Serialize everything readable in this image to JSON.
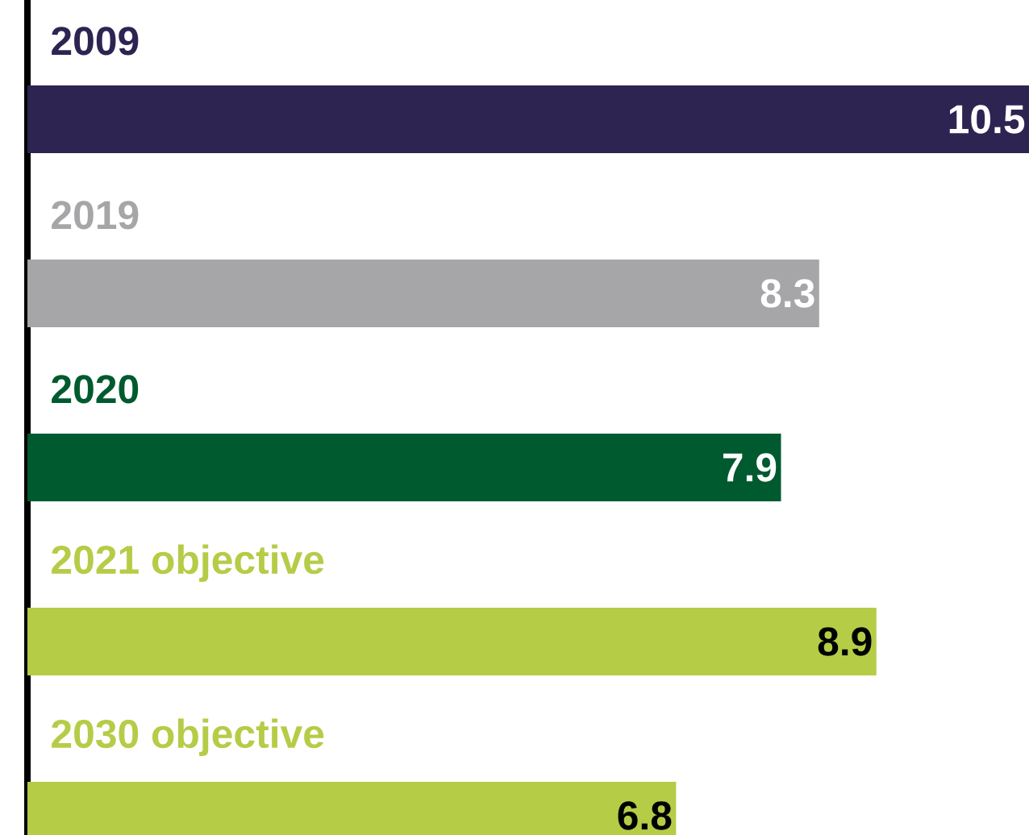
{
  "chart_data": {
    "type": "bar",
    "orientation": "horizontal",
    "categories": [
      "2009",
      "2019",
      "2020",
      "2021 objective",
      "2030 objective"
    ],
    "values": [
      10.5,
      8.3,
      7.9,
      8.9,
      6.8
    ],
    "colors": [
      "#2e2452",
      "#a6a5a7",
      "#005a2f",
      "#b5cc47",
      "#b5cc47"
    ],
    "data_labels": true
  }
}
